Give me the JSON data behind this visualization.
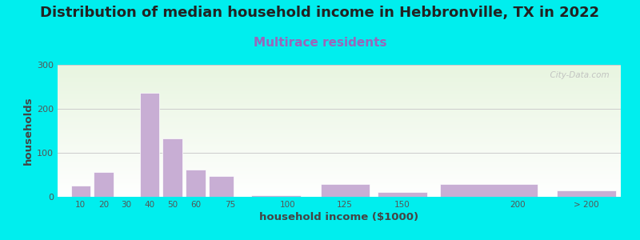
{
  "title": "Distribution of median household income in Hebbronville, TX in 2022",
  "subtitle": "Multirace residents",
  "xlabel": "household income ($1000)",
  "ylabel": "households",
  "title_fontsize": 13,
  "subtitle_fontsize": 11,
  "subtitle_color": "#9966bb",
  "bar_color": "#c8aed4",
  "bar_edge_color": "#ffffff",
  "background_outer": "#00eeee",
  "ylim": [
    0,
    300
  ],
  "yticks": [
    0,
    100,
    200,
    300
  ],
  "grid_color": "#cccccc",
  "watermark": "  City-Data.com",
  "tick_labels": [
    "10",
    "20",
    "30",
    "40",
    "50",
    "60",
    "75",
    "100",
    "125",
    "150",
    "200",
    "> 200"
  ],
  "tick_positions": [
    10,
    20,
    30,
    40,
    50,
    60,
    75,
    100,
    125,
    150,
    200,
    230
  ],
  "bar_lefts": [
    5,
    15,
    25,
    35,
    45,
    55,
    65,
    82.5,
    112.5,
    137.5,
    162.5,
    215
  ],
  "bar_widths": [
    10,
    10,
    10,
    10,
    10,
    10,
    12.5,
    25,
    25,
    25,
    50,
    30
  ],
  "values": [
    25,
    57,
    0,
    237,
    133,
    62,
    48,
    3,
    30,
    11,
    30,
    15
  ],
  "xlim": [
    0,
    245
  ],
  "title_color": "#222222"
}
